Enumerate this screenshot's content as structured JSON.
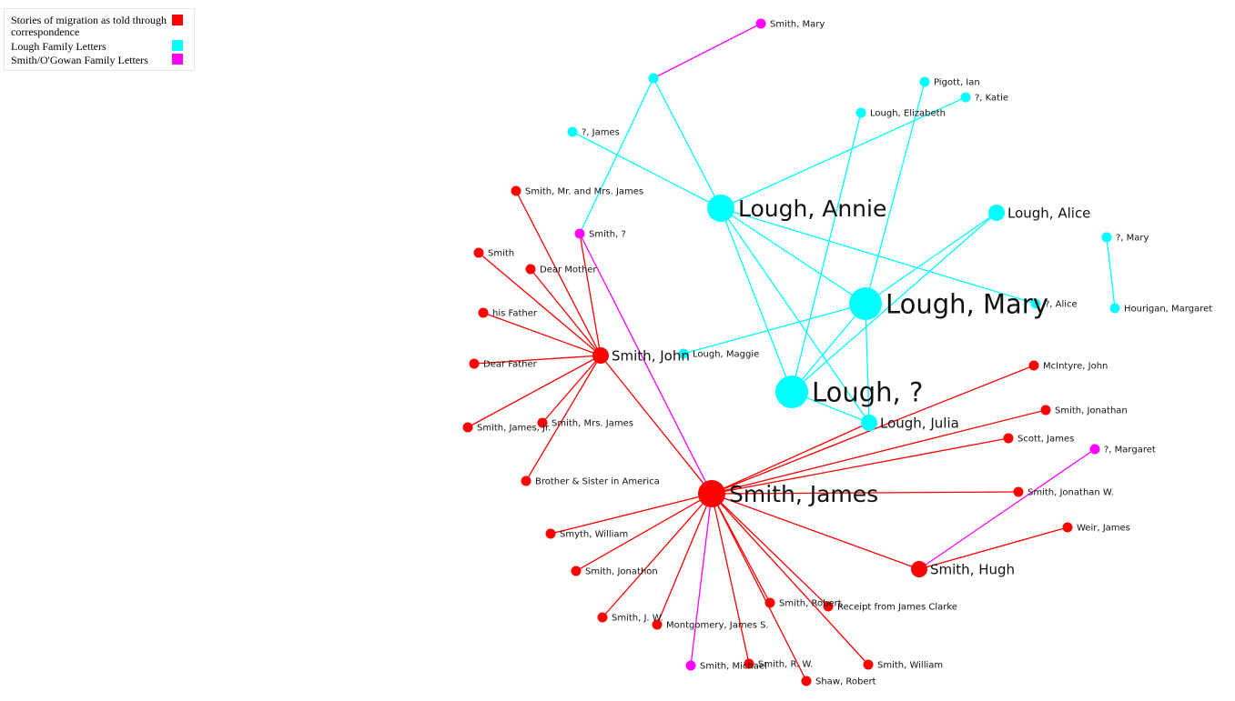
{
  "colors": {
    "stories": "#ff0000",
    "lough": "#00ffff",
    "smith_ogowan": "#ff00ff"
  },
  "legend": {
    "items": [
      {
        "label": "Stories of migration as told through correspondence",
        "color": "#ff0000"
      },
      {
        "label": "Lough Family Letters",
        "color": "#00ffff"
      },
      {
        "label": "Smith/O'Gowan Family Letters",
        "color": "#ff00ff"
      }
    ]
  },
  "nodes": [
    {
      "id": "smith_mary",
      "label": "Smith, Mary",
      "group": "smith_ogowan",
      "size": "small"
    },
    {
      "id": "hub_cyan",
      "label": "",
      "group": "lough",
      "size": "small"
    },
    {
      "id": "pigott_ian",
      "label": "Pigott, Ian",
      "group": "lough",
      "size": "small"
    },
    {
      "id": "q_katie",
      "label": "?, Katie",
      "group": "lough",
      "size": "small"
    },
    {
      "id": "lough_elizabeth",
      "label": "Lough, Elizabeth",
      "group": "lough",
      "size": "small"
    },
    {
      "id": "q_james",
      "label": "?, James",
      "group": "lough",
      "size": "small"
    },
    {
      "id": "lough_annie",
      "label": "Lough, Annie",
      "group": "lough",
      "size": "large"
    },
    {
      "id": "lough_alice",
      "label": "Lough, Alice",
      "group": "lough",
      "size": "medium"
    },
    {
      "id": "q_mary",
      "label": "?, Mary",
      "group": "lough",
      "size": "small"
    },
    {
      "id": "hourigan_margaret",
      "label": "Hourigan, Margaret",
      "group": "lough",
      "size": "small"
    },
    {
      "id": "lough_mary",
      "label": "Lough, Mary",
      "group": "lough",
      "size": "xlarge"
    },
    {
      "id": "q_alice",
      "label": "?, Alice",
      "group": "lough",
      "size": "small"
    },
    {
      "id": "lough_maggie",
      "label": "Lough, Maggie",
      "group": "lough",
      "size": "small"
    },
    {
      "id": "lough_q",
      "label": "Lough, ?",
      "group": "lough",
      "size": "xlarge"
    },
    {
      "id": "lough_julia",
      "label": "Lough, Julia",
      "group": "lough",
      "size": "medium"
    },
    {
      "id": "smith_mr_mrs_james",
      "label": "Smith, Mr. and Mrs. James",
      "group": "stories",
      "size": "small"
    },
    {
      "id": "smith_q",
      "label": "Smith, ?",
      "group": "smith_ogowan",
      "size": "small"
    },
    {
      "id": "smith",
      "label": "Smith",
      "group": "stories",
      "size": "small"
    },
    {
      "id": "dear_mother",
      "label": "Dear Mother",
      "group": "stories",
      "size": "small"
    },
    {
      "id": "his_father",
      "label": "his Father",
      "group": "stories",
      "size": "small"
    },
    {
      "id": "smith_john",
      "label": "Smith, John",
      "group": "stories",
      "size": "medium"
    },
    {
      "id": "dear_father",
      "label": "Dear Father",
      "group": "stories",
      "size": "small"
    },
    {
      "id": "smith_james_jr",
      "label": "Smith, James, Jr.",
      "group": "stories",
      "size": "small"
    },
    {
      "id": "smith_mrs_james",
      "label": "Smith, Mrs. James",
      "group": "stories",
      "size": "small"
    },
    {
      "id": "brother_sister",
      "label": "Brother & Sister in America",
      "group": "stories",
      "size": "small"
    },
    {
      "id": "mcintyre_john",
      "label": "McIntyre, John",
      "group": "stories",
      "size": "small"
    },
    {
      "id": "smith_jonathan",
      "label": "Smith, Jonathan",
      "group": "stories",
      "size": "small"
    },
    {
      "id": "scott_james",
      "label": "Scott, James",
      "group": "stories",
      "size": "small"
    },
    {
      "id": "q_margaret",
      "label": "?, Margaret",
      "group": "smith_ogowan",
      "size": "small"
    },
    {
      "id": "smith_james",
      "label": "Smith, James",
      "group": "stories",
      "size": "large"
    },
    {
      "id": "smith_jonathan_w",
      "label": "Smith, Jonathan W.",
      "group": "stories",
      "size": "small"
    },
    {
      "id": "weir_james",
      "label": "Weir, James",
      "group": "stories",
      "size": "small"
    },
    {
      "id": "smyth_william",
      "label": "Smyth, William",
      "group": "stories",
      "size": "small"
    },
    {
      "id": "smith_jonathon",
      "label": "Smith, Jonathon",
      "group": "stories",
      "size": "small"
    },
    {
      "id": "smith_hugh",
      "label": "Smith, Hugh",
      "group": "stories",
      "size": "medium"
    },
    {
      "id": "smith_robert",
      "label": "Smith, Robert",
      "group": "stories",
      "size": "small"
    },
    {
      "id": "receipt_james_clarke",
      "label": "Receipt from James Clarke",
      "group": "stories",
      "size": "small"
    },
    {
      "id": "smith_jw",
      "label": "Smith, J. W.",
      "group": "stories",
      "size": "small"
    },
    {
      "id": "montgomery_james_s",
      "label": "Montgomery, James S.",
      "group": "stories",
      "size": "small"
    },
    {
      "id": "smith_michael",
      "label": "Smith, Michael",
      "group": "smith_ogowan",
      "size": "small"
    },
    {
      "id": "smith_rw",
      "label": "Smith, R. W.",
      "group": "stories",
      "size": "small"
    },
    {
      "id": "smith_william",
      "label": "Smith, William",
      "group": "stories",
      "size": "small"
    },
    {
      "id": "shaw_robert",
      "label": "Shaw, Robert",
      "group": "stories",
      "size": "small"
    }
  ],
  "edges": [
    {
      "source": "smith_mary",
      "target": "hub_cyan",
      "group": "smith_ogowan"
    },
    {
      "source": "hub_cyan",
      "target": "lough_annie",
      "group": "lough"
    },
    {
      "source": "hub_cyan",
      "target": "smith_q",
      "group": "lough"
    },
    {
      "source": "q_james",
      "target": "lough_annie",
      "group": "lough"
    },
    {
      "source": "lough_annie",
      "target": "q_katie",
      "group": "lough"
    },
    {
      "source": "lough_annie",
      "target": "lough_mary",
      "group": "lough"
    },
    {
      "source": "lough_annie",
      "target": "lough_q",
      "group": "lough"
    },
    {
      "source": "lough_annie",
      "target": "lough_julia",
      "group": "lough"
    },
    {
      "source": "lough_annie",
      "target": "q_alice",
      "group": "lough"
    },
    {
      "source": "lough_elizabeth",
      "target": "lough_q",
      "group": "lough"
    },
    {
      "source": "pigott_ian",
      "target": "lough_mary",
      "group": "lough"
    },
    {
      "source": "lough_alice",
      "target": "lough_mary",
      "group": "lough"
    },
    {
      "source": "lough_alice",
      "target": "lough_q",
      "group": "lough"
    },
    {
      "source": "lough_mary",
      "target": "lough_q",
      "group": "lough"
    },
    {
      "source": "lough_mary",
      "target": "lough_julia",
      "group": "lough"
    },
    {
      "source": "lough_mary",
      "target": "lough_maggie",
      "group": "lough"
    },
    {
      "source": "lough_q",
      "target": "lough_julia",
      "group": "lough"
    },
    {
      "source": "q_mary",
      "target": "hourigan_margaret",
      "group": "lough"
    },
    {
      "source": "smith_john",
      "target": "smith_mr_mrs_james",
      "group": "stories"
    },
    {
      "source": "smith_john",
      "target": "smith_q",
      "group": "stories"
    },
    {
      "source": "smith_john",
      "target": "smith",
      "group": "stories"
    },
    {
      "source": "smith_john",
      "target": "dear_mother",
      "group": "stories"
    },
    {
      "source": "smith_john",
      "target": "his_father",
      "group": "stories"
    },
    {
      "source": "smith_john",
      "target": "dear_father",
      "group": "stories"
    },
    {
      "source": "smith_john",
      "target": "smith_james_jr",
      "group": "stories"
    },
    {
      "source": "smith_john",
      "target": "smith_mrs_james",
      "group": "stories"
    },
    {
      "source": "smith_john",
      "target": "brother_sister",
      "group": "stories"
    },
    {
      "source": "smith_john",
      "target": "smith_james",
      "group": "stories"
    },
    {
      "source": "smith_q",
      "target": "smith_james",
      "group": "smith_ogowan"
    },
    {
      "source": "smith_james",
      "target": "lough_julia",
      "group": "stories"
    },
    {
      "source": "smith_james",
      "target": "mcintyre_john",
      "group": "stories"
    },
    {
      "source": "smith_james",
      "target": "smith_jonathan",
      "group": "stories"
    },
    {
      "source": "smith_james",
      "target": "scott_james",
      "group": "stories"
    },
    {
      "source": "smith_james",
      "target": "smith_jonathan_w",
      "group": "stories"
    },
    {
      "source": "smith_james",
      "target": "smith_hugh",
      "group": "stories"
    },
    {
      "source": "smith_james",
      "target": "smyth_william",
      "group": "stories"
    },
    {
      "source": "smith_james",
      "target": "smith_jonathon",
      "group": "stories"
    },
    {
      "source": "smith_james",
      "target": "smith_jw",
      "group": "stories"
    },
    {
      "source": "smith_james",
      "target": "montgomery_james_s",
      "group": "stories"
    },
    {
      "source": "smith_james",
      "target": "smith_michael",
      "group": "smith_ogowan"
    },
    {
      "source": "smith_james",
      "target": "smith_rw",
      "group": "stories"
    },
    {
      "source": "smith_james",
      "target": "smith_robert",
      "group": "stories"
    },
    {
      "source": "smith_james",
      "target": "receipt_james_clarke",
      "group": "stories"
    },
    {
      "source": "smith_james",
      "target": "shaw_robert",
      "group": "stories"
    },
    {
      "source": "smith_james",
      "target": "smith_william",
      "group": "stories"
    },
    {
      "source": "smith_hugh",
      "target": "weir_james",
      "group": "stories"
    },
    {
      "source": "smith_hugh",
      "target": "q_margaret",
      "group": "smith_ogowan"
    }
  ]
}
